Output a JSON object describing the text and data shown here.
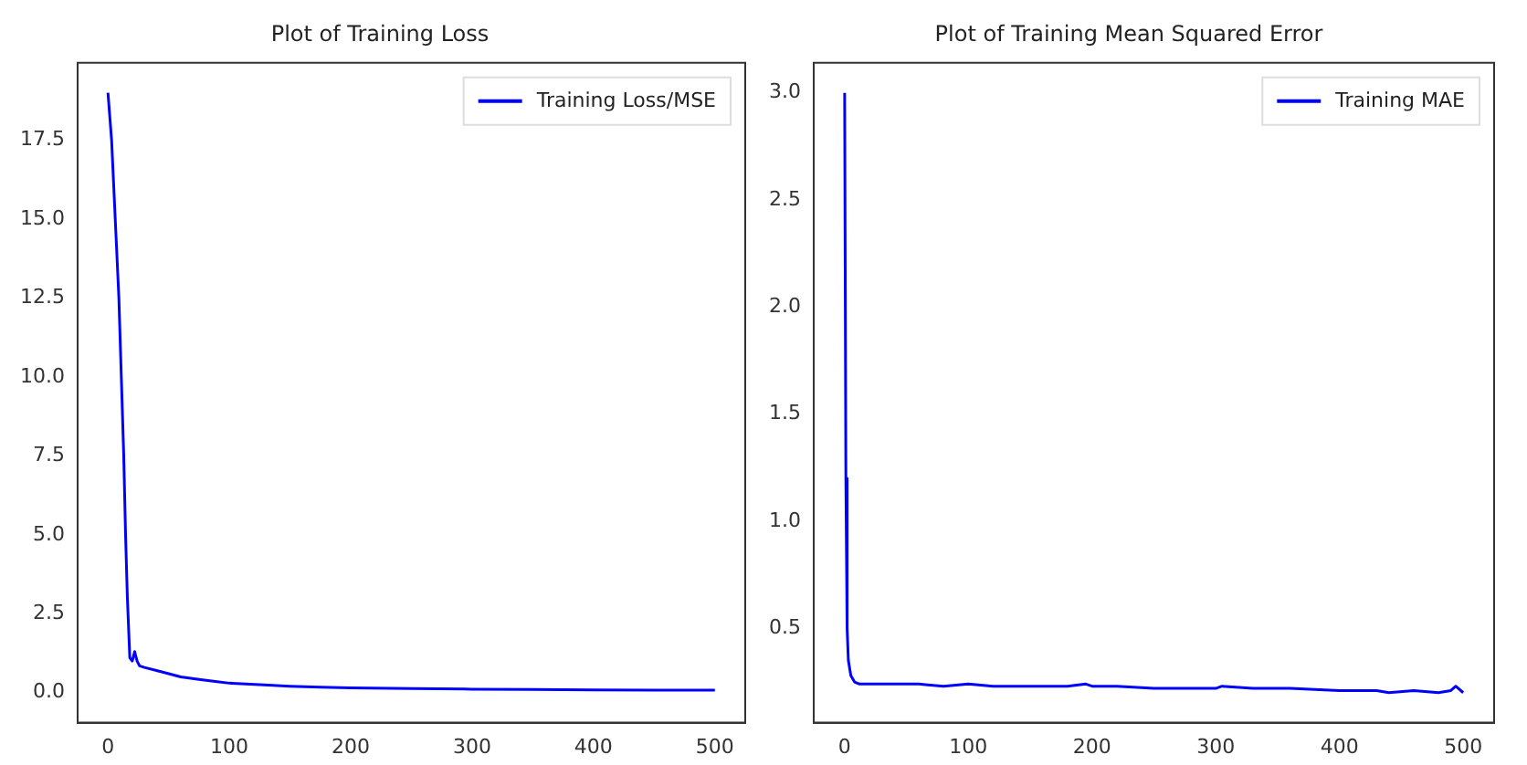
{
  "chart_data": [
    {
      "type": "line",
      "title": "Plot of Training Loss",
      "legend": "top right",
      "marker": "none",
      "line_style": "solid",
      "grid": false,
      "x": [
        0,
        3,
        6,
        9,
        11,
        13,
        14.5,
        16,
        18,
        20,
        22,
        24,
        26,
        30,
        40,
        50,
        60,
        75,
        90,
        100,
        125,
        150,
        175,
        200,
        250,
        300,
        350,
        400,
        450,
        500
      ],
      "series": [
        {
          "name": "Training Loss/MSE",
          "color": "#0000ff",
          "values": [
            19.0,
            17.5,
            15.0,
            12.5,
            10.0,
            7.5,
            5.0,
            3.0,
            1.1,
            1.0,
            1.3,
            1.0,
            0.85,
            0.8,
            0.7,
            0.6,
            0.5,
            0.42,
            0.35,
            0.3,
            0.25,
            0.2,
            0.17,
            0.15,
            0.13,
            0.11,
            0.1,
            0.09,
            0.08,
            0.08
          ]
        }
      ],
      "xlim": [
        -25,
        525
      ],
      "xticks": [
        0,
        100,
        200,
        300,
        400,
        500
      ],
      "ylim": [
        -0.95,
        19.95
      ],
      "yticks": [
        {
          "value": 0,
          "label": "0.0"
        },
        {
          "value": 2.5,
          "label": "2.5"
        },
        {
          "value": 5,
          "label": "5.0"
        },
        {
          "value": 7.5,
          "label": "7.5"
        },
        {
          "value": 10,
          "label": "10.0"
        },
        {
          "value": 12.5,
          "label": "12.5"
        },
        {
          "value": 15,
          "label": "15.0"
        },
        {
          "value": 17.5,
          "label": "17.5"
        }
      ]
    },
    {
      "type": "line",
      "title": "Plot of Training Mean Squared Error",
      "legend": "top right",
      "marker": "none",
      "line_style": "solid",
      "grid": false,
      "x": [
        0,
        1,
        2,
        3,
        5,
        8,
        12,
        20,
        30,
        40,
        50,
        60,
        80,
        100,
        120,
        150,
        180,
        195,
        200,
        220,
        250,
        280,
        300,
        305,
        330,
        360,
        400,
        430,
        440,
        460,
        480,
        490,
        494,
        500
      ],
      "series": [
        {
          "name": "Training MAE",
          "color": "#0000ff",
          "values": [
            3.0,
            1.2,
            0.5,
            0.35,
            0.28,
            0.25,
            0.24,
            0.24,
            0.24,
            0.24,
            0.24,
            0.24,
            0.23,
            0.24,
            0.23,
            0.23,
            0.23,
            0.24,
            0.23,
            0.23,
            0.22,
            0.22,
            0.22,
            0.23,
            0.22,
            0.22,
            0.21,
            0.21,
            0.2,
            0.21,
            0.2,
            0.21,
            0.23,
            0.2
          ]
        }
      ],
      "xlim": [
        -25,
        525
      ],
      "xticks": [
        0,
        100,
        200,
        300,
        400,
        500
      ],
      "ylim": [
        0.06,
        3.14
      ],
      "yticks": [
        {
          "value": 0.5,
          "label": "0.5"
        },
        {
          "value": 1,
          "label": "1.0"
        },
        {
          "value": 1.5,
          "label": "1.5"
        },
        {
          "value": 2,
          "label": "2.0"
        },
        {
          "value": 2.5,
          "label": "2.5"
        },
        {
          "value": 3,
          "label": "3.0"
        }
      ]
    }
  ]
}
